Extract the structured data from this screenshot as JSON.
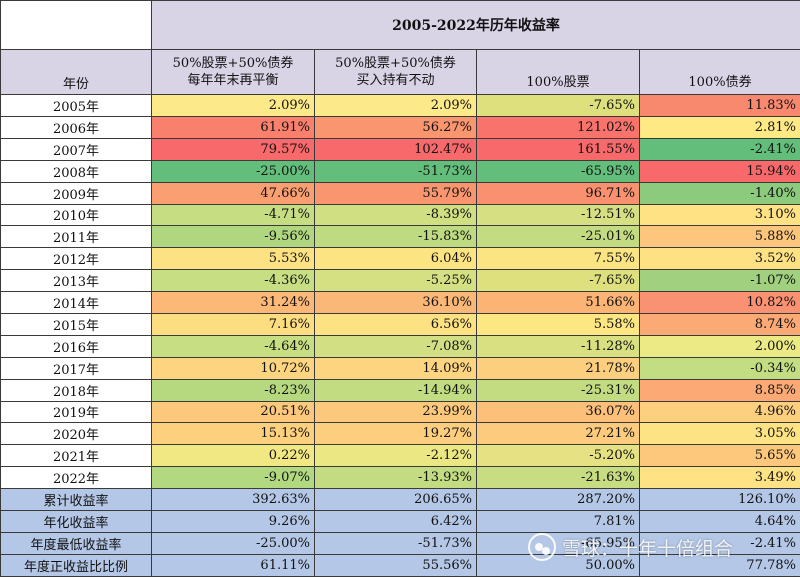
{
  "table": {
    "title": "2005-2022年历年收益率",
    "year_header": "年份",
    "columns": [
      {
        "line1": "50%股票+50%债券",
        "line2": "每年年末再平衡"
      },
      {
        "line1": "50%股票+50%债券",
        "line2": "买入持有不动"
      },
      {
        "line1": "100%股票",
        "line2": ""
      },
      {
        "line1": "100%债券",
        "line2": ""
      }
    ],
    "rows": [
      {
        "year": "2005年",
        "values": [
          "2.09%",
          "2.09%",
          "-7.65%",
          "11.83%"
        ],
        "colors": [
          "#fce989",
          "#fce989",
          "#dde07d",
          "#f8896f"
        ]
      },
      {
        "year": "2006年",
        "values": [
          "61.91%",
          "56.27%",
          "121.02%",
          "2.81%"
        ],
        "colors": [
          "#f8806d",
          "#f9956f",
          "#f7736c",
          "#fee985"
        ]
      },
      {
        "year": "2007年",
        "values": [
          "79.57%",
          "102.47%",
          "161.55%",
          "-2.41%"
        ],
        "colors": [
          "#f7696b",
          "#f8696b",
          "#f8696b",
          "#63be7b"
        ]
      },
      {
        "year": "2008年",
        "values": [
          "-25.00%",
          "-51.73%",
          "-65.95%",
          "15.94%"
        ],
        "colors": [
          "#63be7b",
          "#63be7b",
          "#63be7b",
          "#f8696b"
        ]
      },
      {
        "year": "2009年",
        "values": [
          "47.66%",
          "55.79%",
          "96.71%",
          "-1.40%"
        ],
        "colors": [
          "#fa9f71",
          "#f9966f",
          "#f9906f",
          "#8ccb7e"
        ]
      },
      {
        "year": "2010年",
        "values": [
          "-4.71%",
          "-8.39%",
          "-12.51%",
          "3.10%"
        ],
        "colors": [
          "#c6dd81",
          "#cfdf82",
          "#d6e082",
          "#fee284"
        ]
      },
      {
        "year": "2011年",
        "values": [
          "-9.56%",
          "-15.83%",
          "-25.01%",
          "5.88%"
        ],
        "colors": [
          "#b0d780",
          "#bedb81",
          "#c3dc81",
          "#fdc67c"
        ]
      },
      {
        "year": "2012年",
        "values": [
          "5.53%",
          "6.04%",
          "7.55%",
          "3.52%"
        ],
        "colors": [
          "#fde283",
          "#fde483",
          "#fbe583",
          "#fee183"
        ]
      },
      {
        "year": "2013年",
        "values": [
          "-4.36%",
          "-5.25%",
          "-7.65%",
          "-1.07%"
        ],
        "colors": [
          "#c8de82",
          "#d5e082",
          "#dde07d",
          "#a1d07f"
        ]
      },
      {
        "year": "2014年",
        "values": [
          "31.24%",
          "36.10%",
          "51.66%",
          "10.82%"
        ],
        "colors": [
          "#fbb877",
          "#fab878",
          "#fbb474",
          "#f89272"
        ]
      },
      {
        "year": "2015年",
        "values": [
          "7.16%",
          "6.56%",
          "5.58%",
          "8.74%"
        ],
        "colors": [
          "#fddd82",
          "#fde283",
          "#fde783",
          "#fcaa75"
        ]
      },
      {
        "year": "2016年",
        "values": [
          "-4.64%",
          "-7.08%",
          "-11.28%",
          "2.00%"
        ],
        "colors": [
          "#c7de82",
          "#d2df82",
          "#d8e082",
          "#ecea84"
        ]
      },
      {
        "year": "2017年",
        "values": [
          "10.72%",
          "14.09%",
          "21.78%",
          "-0.34%"
        ],
        "colors": [
          "#fdd580",
          "#fdd580",
          "#fccf7e",
          "#c3dd82"
        ]
      },
      {
        "year": "2018年",
        "values": [
          "-8.23%",
          "-14.94%",
          "-25.31%",
          "8.85%"
        ],
        "colors": [
          "#b6d980",
          "#c1dc81",
          "#c3dc81",
          "#fca975"
        ]
      },
      {
        "year": "2019年",
        "values": [
          "20.51%",
          "23.99%",
          "36.07%",
          "4.96%"
        ],
        "colors": [
          "#fcc87c",
          "#fcc87c",
          "#fcc07a",
          "#fdd07f"
        ]
      },
      {
        "year": "2020年",
        "values": [
          "15.13%",
          "19.27%",
          "27.21%",
          "3.05%"
        ],
        "colors": [
          "#fdd07e",
          "#fcce7e",
          "#fccb7d",
          "#fee384"
        ]
      },
      {
        "year": "2021年",
        "values": [
          "0.22%",
          "-2.12%",
          "-5.20%",
          "5.65%"
        ],
        "colors": [
          "#f2e883",
          "#ebe783",
          "#e6e283",
          "#fdc87c"
        ]
      },
      {
        "year": "2022年",
        "values": [
          "-9.07%",
          "-13.93%",
          "-21.63%",
          "3.49%"
        ],
        "colors": [
          "#b2d880",
          "#c3dc81",
          "#c8dd81",
          "#fee283"
        ]
      }
    ],
    "summary": [
      {
        "label": "累计收益率",
        "values": [
          "392.63%",
          "206.65%",
          "287.20%",
          "126.10%"
        ]
      },
      {
        "label": "年化收益率",
        "values": [
          "9.26%",
          "6.42%",
          "7.81%",
          "4.64%"
        ]
      },
      {
        "label": "年度最低收益率",
        "values": [
          "-25.00%",
          "-51.73%",
          "-65.95%",
          "-2.41%"
        ]
      },
      {
        "label": "年度正收益比比例",
        "values": [
          "61.11%",
          "55.56%",
          "50.00%",
          "77.78%"
        ]
      }
    ]
  },
  "watermark": {
    "text": "雪球：十年十倍组合"
  }
}
